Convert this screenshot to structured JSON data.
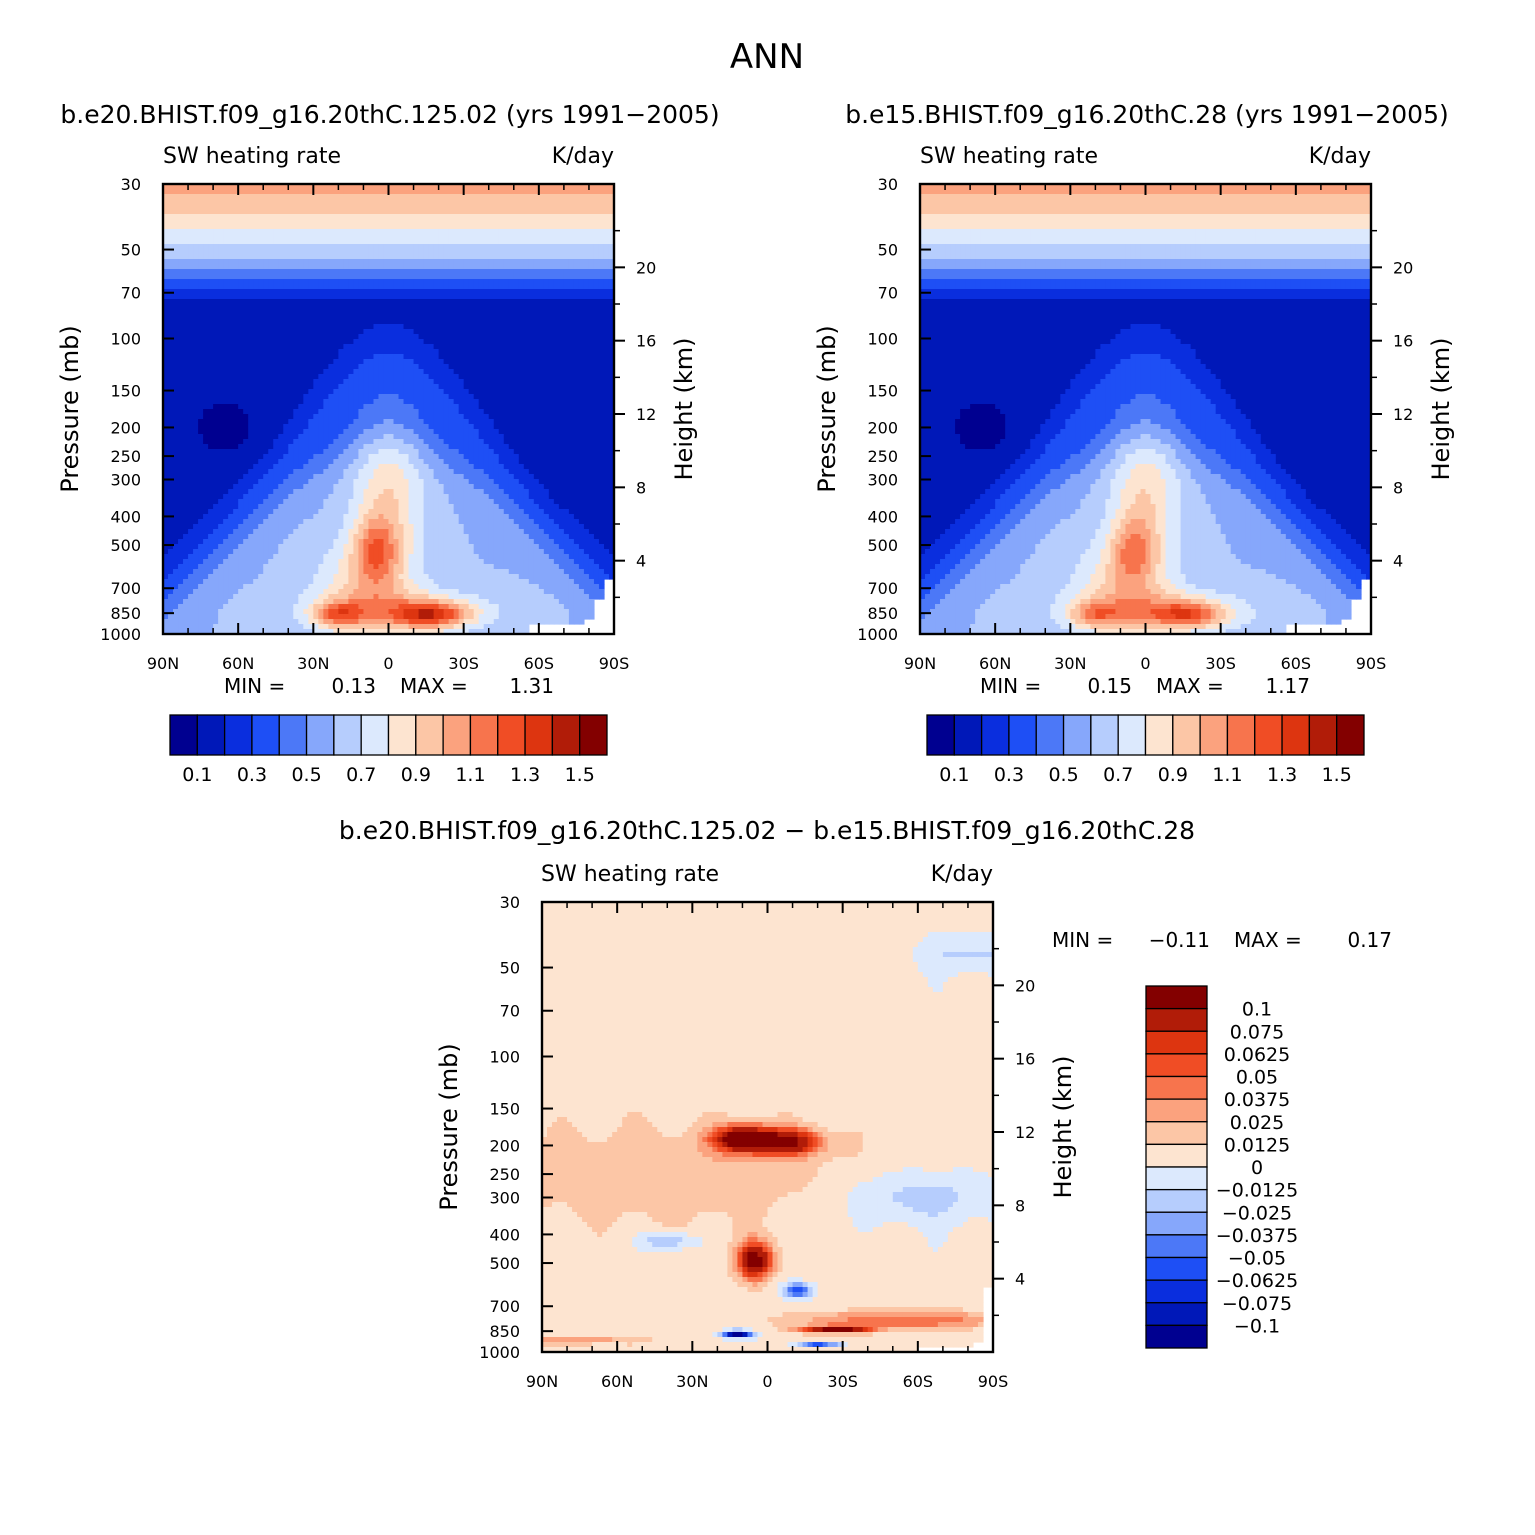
{
  "figure": {
    "title": "ANN"
  },
  "panels": [
    {
      "title": "b.e20.BHIST.f09_g16.20thC.125.02 (yrs 1991−2005)",
      "left_label": "SW heating rate",
      "right_label": "K/day",
      "ylabel": "Pressure (mb)",
      "y2label": "Height (km)",
      "min_label": "MIN =",
      "min_value": "0.13",
      "max_label": "MAX =",
      "max_value": "1.31"
    },
    {
      "title": "b.e15.BHIST.f09_g16.20thC.28 (yrs 1991−2005)",
      "left_label": "SW heating rate",
      "right_label": "K/day",
      "ylabel": "Pressure (mb)",
      "y2label": "Height (km)",
      "min_label": "MIN =",
      "min_value": "0.15",
      "max_label": "MAX =",
      "max_value": "1.17"
    },
    {
      "title": "b.e20.BHIST.f09_g16.20thC.125.02 − b.e15.BHIST.f09_g16.20thC.28",
      "left_label": "SW heating rate",
      "right_label": "K/day",
      "ylabel": "Pressure (mb)",
      "y2label": "Height (km)",
      "min_label": "MIN =",
      "min_value": "−0.11",
      "max_label": "MAX =",
      "max_value": "0.17"
    }
  ],
  "chart_data": [
    {
      "type": "heatmap",
      "title": "b.e20.BHIST.f09_g16.20thC.125.02 (yrs 1991−2005)",
      "variable": "SW heating rate",
      "units": "K/day",
      "x_ticks": [
        "90N",
        "60N",
        "30N",
        "0",
        "30S",
        "60S",
        "90S"
      ],
      "x_range": [
        90,
        -90
      ],
      "y_ticks": [
        "30",
        "50",
        "70",
        "100",
        "150",
        "200",
        "250",
        "300",
        "400",
        "500",
        "700",
        "850",
        "1000"
      ],
      "y_range": [
        30,
        1000
      ],
      "y_scale": "log",
      "y2_ticks": [
        "20",
        "16",
        "12",
        "8",
        "4"
      ],
      "xlabel": "",
      "ylabel": "Pressure (mb)",
      "y2label": "Height (km)",
      "min": 0.13,
      "max": 1.31,
      "features": {
        "peak_max": {
          "lat": -17,
          "p": 860,
          "value": 1.31
        },
        "secondary_max": {
          "lat": 20,
          "p": 860,
          "value": 1.1
        },
        "upper_tongue": {
          "lat": 5,
          "p": 520,
          "value": 1.1
        },
        "min_region": {
          "lat": 65,
          "p": 200,
          "value": 0.13
        }
      },
      "colorbar": {
        "labels": [
          "0.1",
          "0.3",
          "0.5",
          "0.7",
          "0.9",
          "1.1",
          "1.3",
          "1.5"
        ],
        "colors": [
          "#000090",
          "#0018b8",
          "#0a2ede",
          "#1e4ff5",
          "#4c78f7",
          "#86a7fb",
          "#b6cdfd",
          "#dce9fd",
          "#fde4d0",
          "#fcc6a6",
          "#fba27e",
          "#f7744d",
          "#f04d25",
          "#dd3510",
          "#b11c08",
          "#830000"
        ]
      }
    },
    {
      "type": "heatmap",
      "title": "b.e15.BHIST.f09_g16.20thC.28 (yrs 1991−2005)",
      "variable": "SW heating rate",
      "units": "K/day",
      "x_ticks": [
        "90N",
        "60N",
        "30N",
        "0",
        "30S",
        "60S",
        "90S"
      ],
      "x_range": [
        90,
        -90
      ],
      "y_ticks": [
        "30",
        "50",
        "70",
        "100",
        "150",
        "200",
        "250",
        "300",
        "400",
        "500",
        "700",
        "850",
        "1000"
      ],
      "y_range": [
        30,
        1000
      ],
      "y_scale": "log",
      "y2_ticks": [
        "20",
        "16",
        "12",
        "8",
        "4"
      ],
      "xlabel": "",
      "ylabel": "Pressure (mb)",
      "y2label": "Height (km)",
      "min": 0.15,
      "max": 1.17,
      "features": {
        "peak_max": {
          "lat": -15,
          "p": 860,
          "value": 1.17
        },
        "secondary_max": {
          "lat": 20,
          "p": 860,
          "value": 1.05
        },
        "upper_tongue": {
          "lat": 5,
          "p": 520,
          "value": 0.95
        },
        "min_region": {
          "lat": 65,
          "p": 200,
          "value": 0.15
        }
      },
      "colorbar": {
        "labels": [
          "0.1",
          "0.3",
          "0.5",
          "0.7",
          "0.9",
          "1.1",
          "1.3",
          "1.5"
        ],
        "colors": [
          "#000090",
          "#0018b8",
          "#0a2ede",
          "#1e4ff5",
          "#4c78f7",
          "#86a7fb",
          "#b6cdfd",
          "#dce9fd",
          "#fde4d0",
          "#fcc6a6",
          "#fba27e",
          "#f7744d",
          "#f04d25",
          "#dd3510",
          "#b11c08",
          "#830000"
        ]
      }
    },
    {
      "type": "heatmap",
      "title": "b.e20.BHIST.f09_g16.20thC.125.02 − b.e15.BHIST.f09_g16.20thC.28",
      "variable": "SW heating rate",
      "units": "K/day",
      "x_ticks": [
        "90N",
        "60N",
        "30N",
        "0",
        "30S",
        "60S",
        "90S"
      ],
      "x_range": [
        90,
        -90
      ],
      "y_ticks": [
        "30",
        "50",
        "70",
        "100",
        "150",
        "200",
        "250",
        "300",
        "400",
        "500",
        "700",
        "850",
        "1000"
      ],
      "y_range": [
        30,
        1000
      ],
      "y_scale": "log",
      "y2_ticks": [
        "20",
        "16",
        "12",
        "8",
        "4"
      ],
      "xlabel": "",
      "ylabel": "Pressure (mb)",
      "y2label": "Height (km)",
      "min": -0.11,
      "max": 0.17,
      "features": {
        "upper_max_N": {
          "lat": 10,
          "p": 190,
          "value": 0.17
        },
        "upper_max_S": {
          "lat": -8,
          "p": 195,
          "value": 0.15
        },
        "mid_max": {
          "lat": 5,
          "p": 490,
          "value": 0.12
        },
        "low_max_S": {
          "lat": -27,
          "p": 840,
          "value": 0.12
        },
        "low_min_N": {
          "lat": 12,
          "p": 870,
          "value": -0.11
        },
        "low_min_S": {
          "lat": -20,
          "p": 950,
          "value": -0.11
        },
        "mid_min_S": {
          "lat": -12,
          "p": 620,
          "value": -0.06
        }
      },
      "colorbar": {
        "labels": [
          "0.1",
          "0.075",
          "0.0625",
          "0.05",
          "0.0375",
          "0.025",
          "0.0125",
          "0",
          "−0.0125",
          "−0.025",
          "−0.0375",
          "−0.05",
          "−0.0625",
          "−0.075",
          "−0.1"
        ],
        "colors": [
          "#830000",
          "#b11c08",
          "#dd3510",
          "#f04d25",
          "#f7744d",
          "#fba27e",
          "#fcc6a6",
          "#fde4d0",
          "#dce9fd",
          "#b6cdfd",
          "#86a7fb",
          "#4c78f7",
          "#1e4ff5",
          "#0a2ede",
          "#0018b8",
          "#000090"
        ]
      }
    }
  ]
}
